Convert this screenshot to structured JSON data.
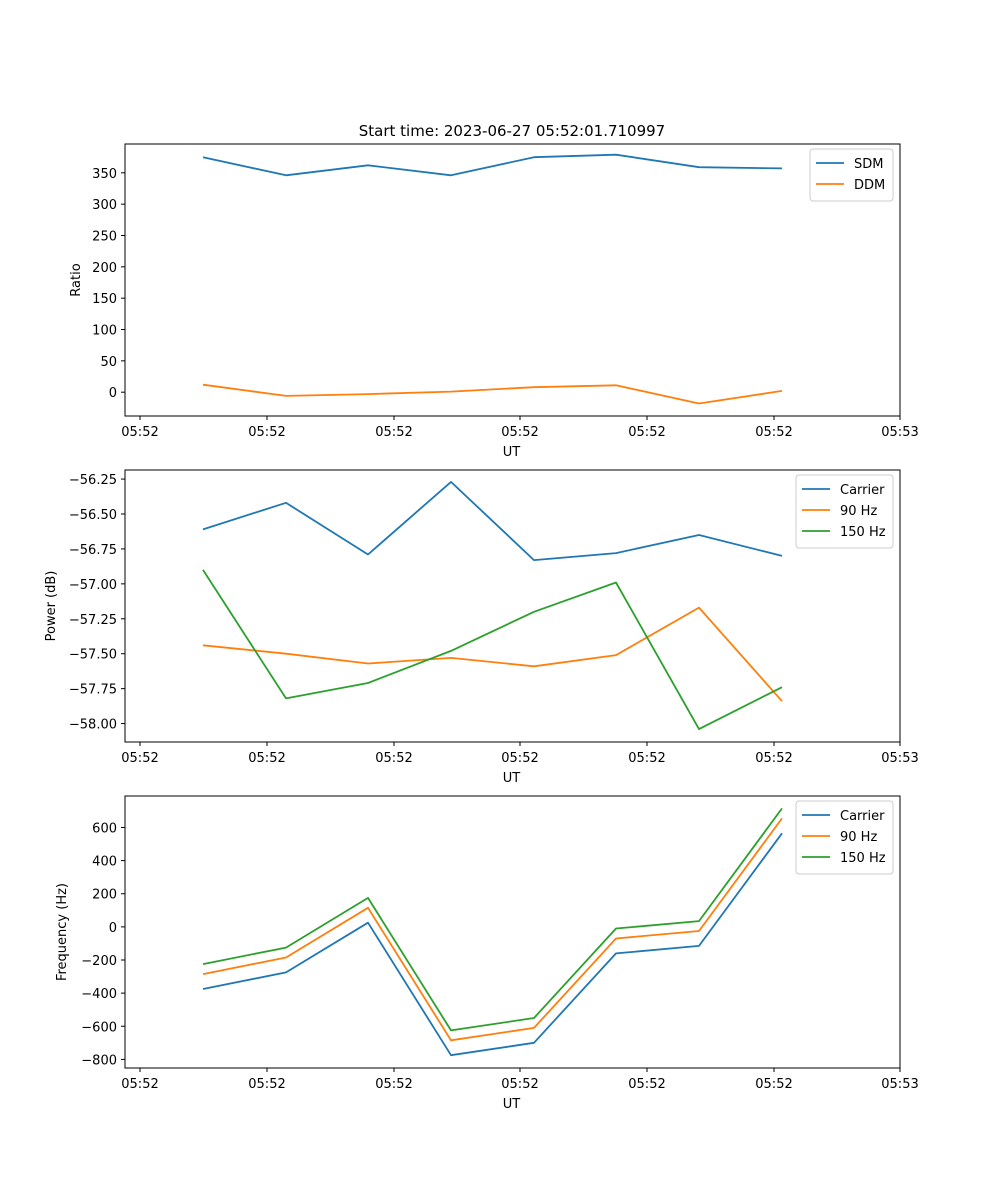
{
  "figure": {
    "title": "Start time: 2023-06-27 05:52:01.710997"
  },
  "chart_data": [
    {
      "type": "line",
      "xlabel": "UT",
      "ylabel": "Ratio",
      "x_ticks": [
        "05:52",
        "05:52",
        "05:52",
        "05:52",
        "05:52",
        "05:52",
        "05:53"
      ],
      "y_ticks": [
        0,
        50,
        100,
        150,
        200,
        250,
        300,
        350
      ],
      "ylim": [
        -38,
        396
      ],
      "legend_position": "top-right",
      "grid": false,
      "series": [
        {
          "name": "SDM",
          "color": "#1f77b4",
          "values": [
            375,
            346,
            362,
            346,
            375,
            379,
            359,
            357
          ]
        },
        {
          "name": "DDM",
          "color": "#ff7f0e",
          "values": [
            12,
            -6,
            -3,
            1,
            8,
            11,
            -18,
            2
          ]
        }
      ]
    },
    {
      "type": "line",
      "xlabel": "UT",
      "ylabel": "Power (dB)",
      "x_ticks": [
        "05:52",
        "05:52",
        "05:52",
        "05:52",
        "05:52",
        "05:52",
        "05:53"
      ],
      "y_ticks": [
        "−58.00",
        "−57.75",
        "−57.50",
        "−57.25",
        "−57.00",
        "−56.75",
        "−56.50",
        "−56.25"
      ],
      "y_tick_values": [
        -58.0,
        -57.75,
        -57.5,
        -57.25,
        -57.0,
        -56.75,
        -56.5,
        -56.25
      ],
      "ylim": [
        -58.132,
        -56.185
      ],
      "legend_position": "top-right",
      "grid": false,
      "series": [
        {
          "name": "Carrier",
          "color": "#1f77b4",
          "values": [
            -56.61,
            -56.42,
            -56.79,
            -56.27,
            -56.83,
            -56.78,
            -56.65,
            -56.8
          ]
        },
        {
          "name": "90 Hz",
          "color": "#ff7f0e",
          "values": [
            -57.44,
            -57.5,
            -57.57,
            -57.53,
            -57.59,
            -57.51,
            -57.17,
            -57.84
          ]
        },
        {
          "name": "150 Hz",
          "color": "#2ca02c",
          "values": [
            -56.9,
            -57.82,
            -57.71,
            -57.48,
            -57.2,
            -56.99,
            -58.04,
            -57.74
          ]
        }
      ]
    },
    {
      "type": "line",
      "xlabel": "UT",
      "ylabel": "Frequency (Hz)",
      "x_ticks": [
        "05:52",
        "05:52",
        "05:52",
        "05:52",
        "05:52",
        "05:52",
        "05:53"
      ],
      "y_ticks": [
        "−800",
        "−600",
        "−400",
        "−200",
        "0",
        "200",
        "400",
        "600"
      ],
      "y_tick_values": [
        -800,
        -600,
        -400,
        -200,
        0,
        200,
        400,
        600
      ],
      "ylim": [
        -852,
        790
      ],
      "legend_position": "top-right",
      "grid": false,
      "series": [
        {
          "name": "Carrier",
          "color": "#1f77b4",
          "values": [
            -375,
            -275,
            25,
            -775,
            -700,
            -160,
            -115,
            565
          ]
        },
        {
          "name": "90 Hz",
          "color": "#ff7f0e",
          "values": [
            -285,
            -185,
            115,
            -685,
            -610,
            -70,
            -25,
            655
          ]
        },
        {
          "name": "150 Hz",
          "color": "#2ca02c",
          "values": [
            -225,
            -125,
            175,
            -625,
            -550,
            -10,
            35,
            715
          ]
        }
      ]
    }
  ]
}
